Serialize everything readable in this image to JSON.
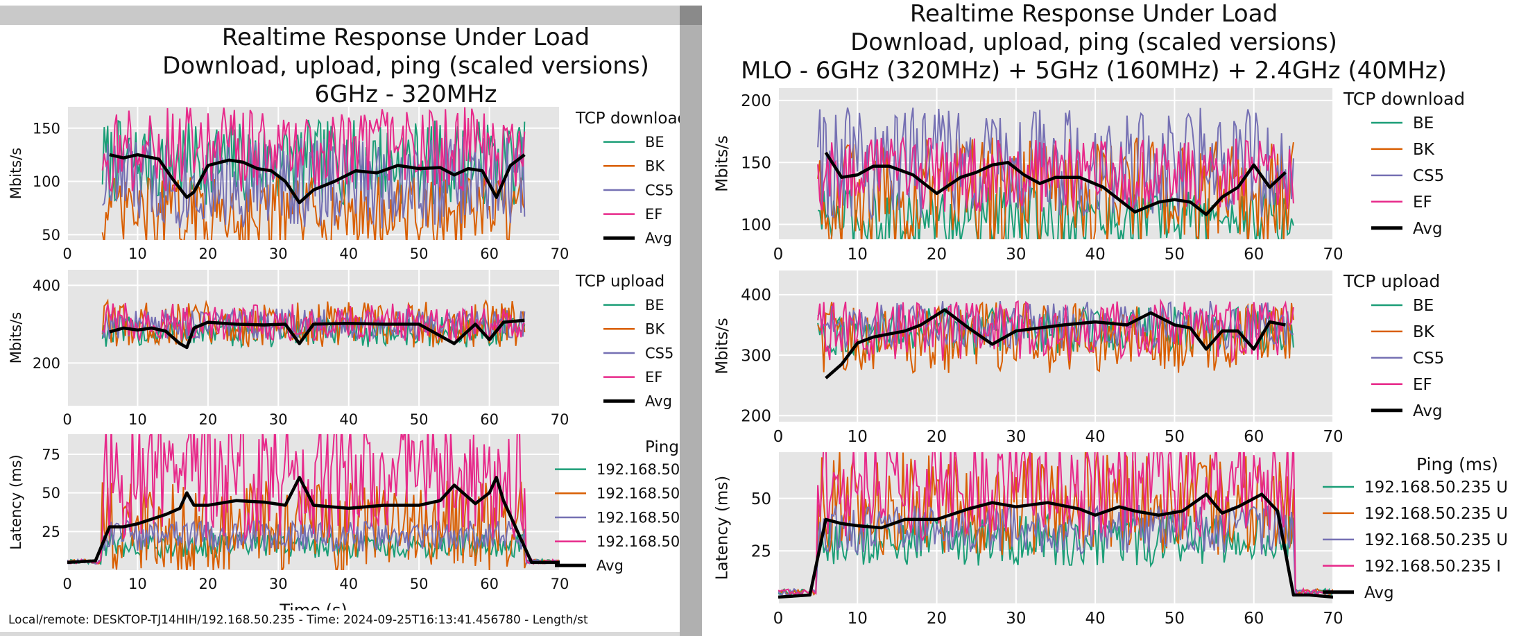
{
  "footer_text": "Local/remote: DESKTOP-TJ14HIH/192.168.50.235 - Time: 2024-09-25T16:13:41.456780 - Length/st",
  "colors": {
    "BE": "#1b9e77",
    "BK": "#d95f02",
    "CS5": "#7570b3",
    "EF": "#e7298a",
    "Avg": "#000000",
    "plot_bg": "#e5e5e5",
    "grid": "#ffffff"
  },
  "chart_data": [
    {
      "type": "line",
      "id": "left",
      "title_lines": [
        "Realtime Response Under Load",
        "Download, upload, ping (scaled versions)",
        "6GHz - 320MHz"
      ],
      "xlabel": "Time (s)",
      "xlim": [
        0,
        70
      ],
      "xticks": [
        0,
        10,
        20,
        30,
        40,
        50,
        60,
        70
      ],
      "subplots": [
        {
          "name": "tcp-download",
          "ylabel": "Mbits/s",
          "ylim": [
            45,
            170
          ],
          "yticks": [
            50,
            100,
            150
          ],
          "legend_title": "TCP download",
          "x": [
            5,
            65
          ],
          "series": [
            {
              "name": "BE",
              "center": 118,
              "spread": 40
            },
            {
              "name": "BK",
              "center": 70,
              "spread": 35
            },
            {
              "name": "CS5",
              "center": 100,
              "spread": 45
            },
            {
              "name": "EF",
              "center": 130,
              "spread": 40
            }
          ],
          "avg": {
            "name": "Avg",
            "x": [
              6,
              8,
              10,
              13,
              15,
              17,
              18,
              20,
              23,
              25,
              27,
              29,
              31,
              33,
              35,
              38,
              41,
              44,
              47,
              50,
              53,
              55,
              57,
              59,
              61,
              63,
              65
            ],
            "values": [
              125,
              122,
              125,
              121,
              102,
              85,
              90,
              115,
              120,
              118,
              112,
              110,
              100,
              80,
              92,
              100,
              110,
              108,
              115,
              112,
              113,
              106,
              112,
              110,
              85,
              115,
              125
            ]
          }
        },
        {
          "name": "tcp-upload",
          "ylabel": "Mbits/s",
          "ylim": [
            90,
            440
          ],
          "yticks": [
            200,
            400
          ],
          "legend_title": "TCP upload",
          "x": [
            5,
            65
          ],
          "series": [
            {
              "name": "BE",
              "center": 280,
              "spread": 40
            },
            {
              "name": "BK",
              "center": 300,
              "spread": 60
            },
            {
              "name": "CS5",
              "center": 300,
              "spread": 40
            },
            {
              "name": "EF",
              "center": 305,
              "spread": 50
            }
          ],
          "avg": {
            "name": "Avg",
            "x": [
              6,
              8,
              10,
              12,
              14,
              16,
              17,
              18,
              20,
              24,
              28,
              31,
              33,
              35,
              40,
              45,
              50,
              55,
              58,
              60,
              62,
              65
            ],
            "values": [
              280,
              290,
              285,
              290,
              282,
              250,
              240,
              290,
              305,
              300,
              298,
              300,
              250,
              300,
              302,
              300,
              300,
              250,
              300,
              260,
              305,
              310
            ]
          }
        },
        {
          "name": "ping",
          "ylabel": "Latency (ms)",
          "ylim": [
            0,
            88
          ],
          "yticks": [
            25,
            50,
            75
          ],
          "legend_title": "Ping (m",
          "x": [
            0,
            70
          ],
          "series": [
            {
              "name": "192.168.50",
              "center": 16,
              "spread": 8
            },
            {
              "name": "192.168.50",
              "center": 28,
              "spread": 30
            },
            {
              "name": "192.168.50",
              "center": 22,
              "spread": 10
            },
            {
              "name": "192.168.50",
              "center": 60,
              "spread": 40
            }
          ],
          "avg": {
            "name": "Avg",
            "x": [
              0,
              4,
              6,
              8,
              10,
              12,
              14,
              16,
              17,
              18,
              20,
              24,
              28,
              31,
              33,
              35,
              40,
              45,
              50,
              53,
              55,
              58,
              60,
              61,
              62,
              64,
              66,
              68,
              70
            ],
            "values": [
              5,
              6,
              28,
              28,
              30,
              33,
              36,
              40,
              50,
              42,
              42,
              45,
              44,
              42,
              60,
              42,
              40,
              42,
              42,
              45,
              55,
              43,
              50,
              60,
              45,
              25,
              5,
              5,
              5
            ]
          }
        }
      ]
    },
    {
      "type": "line",
      "id": "right",
      "title_lines": [
        "Realtime Response Under Load",
        "Download, upload, ping (scaled versions)",
        "MLO - 6GHz (320MHz) + 5GHz (160MHz) + 2.4GHz (40MHz)"
      ],
      "xlabel": "",
      "xlim": [
        0,
        70
      ],
      "xticks": [
        0,
        10,
        20,
        30,
        40,
        50,
        60,
        70
      ],
      "subplots": [
        {
          "name": "tcp-download",
          "ylabel": "Mbits/s",
          "ylim": [
            88,
            210
          ],
          "yticks": [
            100,
            150,
            200
          ],
          "legend_title": "TCP download",
          "x": [
            5,
            65
          ],
          "series": [
            {
              "name": "BE",
              "center": 105,
              "spread": 25
            },
            {
              "name": "BK",
              "center": 125,
              "spread": 45
            },
            {
              "name": "CS5",
              "center": 150,
              "spread": 45
            },
            {
              "name": "EF",
              "center": 140,
              "spread": 30
            }
          ],
          "avg": {
            "name": "Avg",
            "x": [
              6,
              8,
              10,
              12,
              14,
              17,
              20,
              23,
              25,
              27,
              29,
              31,
              33,
              35,
              38,
              41,
              43,
              45,
              48,
              50,
              52,
              54,
              56,
              58,
              60,
              62,
              64
            ],
            "values": [
              158,
              138,
              140,
              147,
              147,
              140,
              125,
              138,
              142,
              148,
              150,
              140,
              133,
              138,
              138,
              130,
              120,
              110,
              118,
              120,
              118,
              108,
              122,
              130,
              148,
              130,
              142
            ]
          }
        },
        {
          "name": "tcp-upload",
          "ylabel": "Mbits/s",
          "ylim": [
            190,
            440
          ],
          "yticks": [
            200,
            300,
            400
          ],
          "legend_title": "TCP upload",
          "x": [
            5,
            65
          ],
          "series": [
            {
              "name": "BE",
              "center": 340,
              "spread": 40
            },
            {
              "name": "BK",
              "center": 330,
              "spread": 60
            },
            {
              "name": "CS5",
              "center": 350,
              "spread": 40
            },
            {
              "name": "EF",
              "center": 340,
              "spread": 50
            }
          ],
          "avg": {
            "name": "Avg",
            "x": [
              6,
              8,
              10,
              12,
              14,
              16,
              18,
              21,
              24,
              27,
              30,
              33,
              36,
              40,
              44,
              47,
              50,
              52,
              54,
              56,
              58,
              60,
              62,
              64
            ],
            "values": [
              262,
              285,
              320,
              330,
              335,
              340,
              350,
              375,
              345,
              318,
              340,
              345,
              350,
              355,
              350,
              370,
              350,
              345,
              310,
              340,
              340,
              310,
              355,
              350
            ]
          }
        },
        {
          "name": "ping",
          "ylabel": "Latency (ms)",
          "ylim": [
            0,
            72
          ],
          "yticks": [
            25,
            50
          ],
          "legend_title": "Ping (ms)",
          "x": [
            0,
            70
          ],
          "series": [
            {
              "name": "192.168.50.235 U",
              "center": 30,
              "spread": 12
            },
            {
              "name": "192.168.50.235 U",
              "center": 48,
              "spread": 25
            },
            {
              "name": "192.168.50.235 U",
              "center": 35,
              "spread": 12
            },
            {
              "name": "192.168.50.235 I",
              "center": 55,
              "spread": 25
            }
          ],
          "avg": {
            "name": "Avg",
            "x": [
              0,
              4,
              6,
              8,
              10,
              13,
              16,
              20,
              24,
              27,
              30,
              34,
              38,
              40,
              43,
              45,
              48,
              51,
              54,
              56,
              58,
              61,
              63,
              65,
              67,
              70
            ],
            "values": [
              3,
              4,
              40,
              38,
              37,
              36,
              40,
              40,
              45,
              48,
              46,
              48,
              45,
              42,
              46,
              44,
              42,
              44,
              52,
              43,
              46,
              52,
              44,
              4,
              4,
              3
            ]
          }
        }
      ]
    }
  ]
}
